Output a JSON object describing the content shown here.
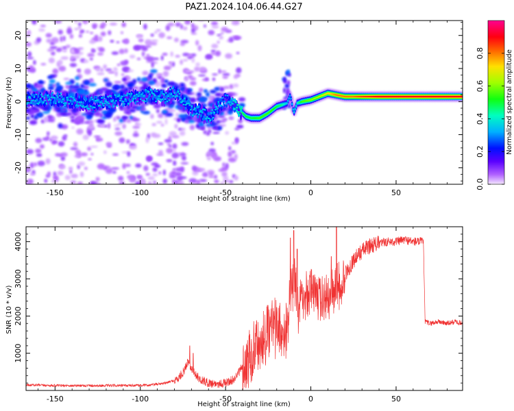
{
  "title": "PAZ1.2024.104.06.44.G27",
  "chart_data": [
    {
      "type": "heatmap",
      "title": "PAZ1.2024.104.06.44.G27",
      "xlabel": "Height of straight line (km)",
      "ylabel": "Frequency (Hz)",
      "xlim": [
        -167,
        89
      ],
      "ylim": [
        -25,
        24.5
      ],
      "xticks": [
        -150,
        -100,
        -50,
        0,
        50
      ],
      "yticks": [
        -20,
        -10,
        0,
        10,
        20
      ],
      "colormap": "gist_rainbow (violet → blue → cyan → green → yellow → red → magenta)",
      "colorbar": {
        "label": "Normalized spectral amplitude",
        "range": [
          0.0,
          1.0
        ],
        "ticks": [
          0.0,
          0.2,
          0.4,
          0.6,
          0.8
        ]
      },
      "ridge": {
        "description": "Dominant spectral line frequency vs height",
        "x": [
          -167,
          -150,
          -130,
          -110,
          -95,
          -85,
          -80,
          -75,
          -70,
          -65,
          -60,
          -55,
          -50,
          -45,
          -42,
          -38,
          -35,
          -30,
          -25,
          -20,
          -17,
          -14,
          -12,
          -10,
          -8,
          -5,
          0,
          5,
          10,
          15,
          20,
          25,
          30,
          40,
          50,
          60,
          70,
          80,
          89
        ],
        "y": [
          0.5,
          1.0,
          -0.5,
          0.5,
          2.0,
          1.0,
          3.0,
          0.5,
          -2.5,
          -3.0,
          -5.0,
          -2.0,
          0.5,
          -1.0,
          -2.5,
          -4.5,
          -5.0,
          -5.0,
          -3.5,
          -1.5,
          -1.0,
          -0.5,
          2.0,
          -3.5,
          -0.5,
          0.0,
          0.5,
          1.5,
          2.5,
          2.0,
          1.5,
          1.5,
          1.5,
          1.5,
          1.5,
          1.5,
          1.5,
          1.5,
          1.5
        ],
        "amplitude": [
          0.35,
          0.35,
          0.35,
          0.35,
          0.35,
          0.35,
          0.35,
          0.35,
          0.35,
          0.35,
          0.35,
          0.35,
          0.3,
          0.4,
          0.45,
          0.5,
          0.5,
          0.55,
          0.55,
          0.5,
          0.45,
          0.35,
          0.3,
          0.35,
          0.4,
          0.55,
          0.6,
          0.65,
          0.7,
          0.8,
          0.8,
          0.8,
          0.85,
          0.9,
          0.9,
          0.9,
          0.9,
          0.9,
          0.9
        ]
      }
    },
    {
      "type": "line",
      "xlabel": "Height of straight line (km)",
      "ylabel": "SNR (10 * v/v)",
      "xlim": [
        -167,
        89
      ],
      "ylim": [
        0,
        4400
      ],
      "xticks": [
        -150,
        -100,
        -50,
        0,
        50
      ],
      "yticks": [
        1000,
        2000,
        3000,
        4000
      ],
      "color": "#f03232",
      "series": [
        {
          "name": "",
          "x": [
            -167,
            -150,
            -130,
            -110,
            -95,
            -85,
            -78,
            -74,
            -72,
            -70,
            -68,
            -65,
            -60,
            -55,
            -50,
            -45,
            -42,
            -38,
            -35,
            -30,
            -25,
            -20,
            -15,
            -12,
            -10,
            -8,
            -5,
            0,
            5,
            10,
            15,
            20,
            25,
            30,
            35,
            40,
            45,
            50,
            55,
            60,
            66,
            67,
            70,
            75,
            80,
            85,
            89
          ],
          "y": [
            150,
            130,
            130,
            130,
            140,
            200,
            300,
            550,
            800,
            600,
            450,
            300,
            200,
            180,
            200,
            300,
            500,
            800,
            1100,
            1500,
            1700,
            1900,
            1700,
            2500,
            3200,
            2400,
            2600,
            2800,
            2600,
            2700,
            2900,
            3100,
            3500,
            3750,
            3900,
            3950,
            4000,
            4000,
            4050,
            4000,
            4000,
            1850,
            1800,
            1850,
            1800,
            1850,
            1800
          ]
        }
      ],
      "spikes": {
        "x": [
          -71,
          -69,
          -12,
          -10,
          -8,
          12,
          15
        ],
        "y": [
          1200,
          1000,
          4100,
          4300,
          3800,
          3600,
          4400
        ]
      }
    }
  ]
}
